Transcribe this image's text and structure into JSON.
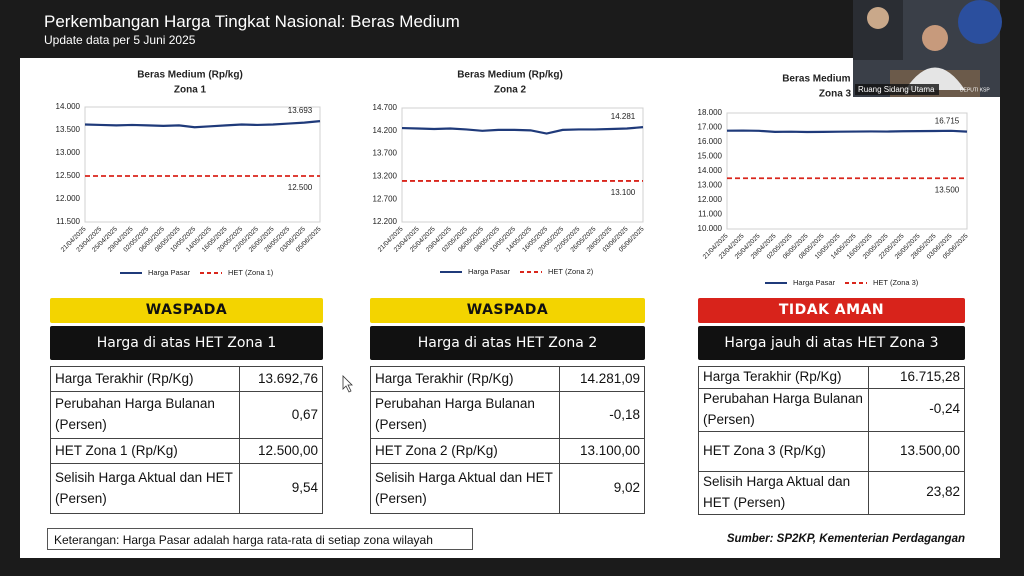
{
  "header": {
    "title": "Perkembangan Harga Tingkat Nasional: Beras Medium",
    "subtitle": "Update data per 5 Juni 2025"
  },
  "chart_data": [
    {
      "type": "line",
      "title": "Beras Medium (Rp/kg)",
      "subtitle": "Zona 1",
      "categories": [
        "21/04/2025",
        "23/04/2025",
        "25/04/2025",
        "29/04/2025",
        "02/05/2025",
        "06/05/2025",
        "08/05/2025",
        "10/05/2025",
        "14/05/2025",
        "16/05/2025",
        "20/05/2025",
        "22/05/2025",
        "26/05/2025",
        "28/05/2025",
        "03/06/2025",
        "05/06/2025"
      ],
      "series": [
        {
          "name": "Harga Pasar",
          "color": "#1f3a7a",
          "dash": false,
          "values": [
            13620,
            13610,
            13600,
            13610,
            13600,
            13590,
            13600,
            13560,
            13580,
            13600,
            13620,
            13610,
            13620,
            13640,
            13660,
            13693
          ],
          "value_labels": [
            null,
            null,
            null,
            null,
            null,
            null,
            null,
            null,
            null,
            null,
            null,
            null,
            null,
            null,
            null,
            "13.693"
          ]
        },
        {
          "name": "HET (Zona 1)",
          "color": "#d9261c",
          "dash": true,
          "values": [
            12500,
            12500,
            12500,
            12500,
            12500,
            12500,
            12500,
            12500,
            12500,
            12500,
            12500,
            12500,
            12500,
            12500,
            12500,
            12500
          ],
          "value_labels": [
            null,
            null,
            null,
            null,
            null,
            null,
            null,
            null,
            null,
            null,
            null,
            null,
            null,
            null,
            null,
            "12.500"
          ]
        }
      ],
      "ylim": [
        11500,
        14000
      ],
      "yticks": [
        {
          "value": 11500,
          "label": "11.500"
        },
        {
          "value": 12000,
          "label": "12.000"
        },
        {
          "value": 12500,
          "label": "12.500"
        },
        {
          "value": 13000,
          "label": "13.000"
        },
        {
          "value": 13500,
          "label": "13.500"
        },
        {
          "value": 14000,
          "label": "14.000"
        }
      ],
      "grid": false,
      "legend": "bottom"
    },
    {
      "type": "line",
      "title": "Beras Medium (Rp/kg)",
      "subtitle": "Zona 2",
      "categories": [
        "21/04/2025",
        "23/04/2025",
        "25/04/2025",
        "29/04/2025",
        "02/05/2025",
        "06/05/2025",
        "08/05/2025",
        "10/05/2025",
        "14/05/2025",
        "16/05/2025",
        "20/05/2025",
        "22/05/2025",
        "26/05/2025",
        "28/05/2025",
        "03/06/2025",
        "05/06/2025"
      ],
      "series": [
        {
          "name": "Harga Pasar",
          "color": "#1f3a7a",
          "dash": false,
          "values": [
            14260,
            14250,
            14240,
            14250,
            14230,
            14200,
            14220,
            14220,
            14210,
            14140,
            14220,
            14230,
            14230,
            14240,
            14250,
            14281
          ],
          "value_labels": [
            null,
            null,
            null,
            null,
            null,
            null,
            null,
            null,
            null,
            null,
            null,
            null,
            null,
            null,
            null,
            "14.281"
          ]
        },
        {
          "name": "HET (Zona 2)",
          "color": "#d9261c",
          "dash": true,
          "values": [
            13100,
            13100,
            13100,
            13100,
            13100,
            13100,
            13100,
            13100,
            13100,
            13100,
            13100,
            13100,
            13100,
            13100,
            13100,
            13100
          ],
          "value_labels": [
            null,
            null,
            null,
            null,
            null,
            null,
            null,
            null,
            null,
            null,
            null,
            null,
            null,
            null,
            null,
            "13.100"
          ]
        }
      ],
      "ylim": [
        12200,
        14700
      ],
      "yticks": [
        {
          "value": 12200,
          "label": "12.200"
        },
        {
          "value": 12700,
          "label": "12.700"
        },
        {
          "value": 13200,
          "label": "13.200"
        },
        {
          "value": 13700,
          "label": "13.700"
        },
        {
          "value": 14200,
          "label": "14.200"
        },
        {
          "value": 14700,
          "label": "14.700"
        }
      ],
      "grid": false,
      "legend": "bottom"
    },
    {
      "type": "line",
      "title": "Beras Medium (Rp/kg)",
      "subtitle": "Zona 3",
      "categories": [
        "21/04/2025",
        "23/04/2025",
        "25/04/2025",
        "29/04/2025",
        "02/05/2025",
        "06/05/2025",
        "08/05/2025",
        "10/05/2025",
        "14/05/2025",
        "16/05/2025",
        "20/05/2025",
        "22/05/2025",
        "26/05/2025",
        "28/05/2025",
        "03/06/2025",
        "05/06/2025"
      ],
      "series": [
        {
          "name": "Harga Pasar",
          "color": "#1f3a7a",
          "dash": false,
          "values": [
            16780,
            16790,
            16770,
            16700,
            16710,
            16690,
            16700,
            16710,
            16720,
            16730,
            16720,
            16740,
            16750,
            16760,
            16770,
            16715
          ],
          "value_labels": [
            null,
            null,
            null,
            null,
            null,
            null,
            null,
            null,
            null,
            null,
            null,
            null,
            null,
            null,
            null,
            "16.715"
          ]
        },
        {
          "name": "HET (Zona 3)",
          "color": "#d9261c",
          "dash": true,
          "values": [
            13500,
            13500,
            13500,
            13500,
            13500,
            13500,
            13500,
            13500,
            13500,
            13500,
            13500,
            13500,
            13500,
            13500,
            13500,
            13500
          ],
          "value_labels": [
            null,
            null,
            null,
            null,
            null,
            null,
            null,
            null,
            null,
            null,
            null,
            null,
            null,
            null,
            null,
            "13.500"
          ]
        }
      ],
      "ylim": [
        10000,
        18000
      ],
      "yticks": [
        {
          "value": 10000,
          "label": "10.000"
        },
        {
          "value": 11000,
          "label": "11.000"
        },
        {
          "value": 12000,
          "label": "12.000"
        },
        {
          "value": 13000,
          "label": "13.000"
        },
        {
          "value": 14000,
          "label": "14.000"
        },
        {
          "value": 15000,
          "label": "15.000"
        },
        {
          "value": 16000,
          "label": "16.000"
        },
        {
          "value": 17000,
          "label": "17.000"
        },
        {
          "value": 18000,
          "label": "18.000"
        }
      ],
      "grid": false,
      "legend": "bottom"
    }
  ],
  "tables": [
    {
      "status": "WASPADA",
      "status_color": "#f3d400",
      "status_text_color": "#111111",
      "note": "Harga di atas HET Zona 1",
      "rows": [
        [
          "Harga Terakhir (Rp/Kg)",
          "13.692,76"
        ],
        [
          "Perubahan Harga Bulanan (Persen)",
          "0,67"
        ],
        [
          "HET Zona 1 (Rp/Kg)",
          "12.500,00"
        ],
        [
          "Selisih Harga Aktual dan HET (Persen)",
          "9,54"
        ]
      ]
    },
    {
      "status": "WASPADA",
      "status_color": "#f3d400",
      "status_text_color": "#111111",
      "note": "Harga di atas HET Zona 2",
      "rows": [
        [
          "Harga Terakhir (Rp/Kg)",
          "14.281,09"
        ],
        [
          "Perubahan Harga Bulanan (Persen)",
          "-0,18"
        ],
        [
          "HET Zona 2 (Rp/Kg)",
          "13.100,00"
        ],
        [
          "Selisih Harga Aktual dan HET (Persen)",
          "9,02"
        ]
      ]
    },
    {
      "status": "TIDAK AMAN",
      "status_color": "#d8231b",
      "status_text_color": "#ffffff",
      "note": "Harga jauh di atas HET Zona 3",
      "rows": [
        [
          "Harga Terakhir (Rp/Kg)",
          "16.715,28"
        ],
        [
          "Perubahan Harga Bulanan (Persen)",
          "-0,24"
        ],
        [
          "HET Zona 3 (Rp/Kg)",
          "13.500,00"
        ],
        [
          "Selisih Harga Aktual dan HET (Persen)",
          "23,82"
        ]
      ]
    }
  ],
  "footer": {
    "note": "Keterangan: Harga Pasar adalah harga rata-rata di setiap zona wilayah",
    "source": "Sumber: SP2KP, Kementerian Perdagangan"
  },
  "video": {
    "label": "Ruang Sidang Utama",
    "sublabel": "DEPUTI KSP"
  }
}
